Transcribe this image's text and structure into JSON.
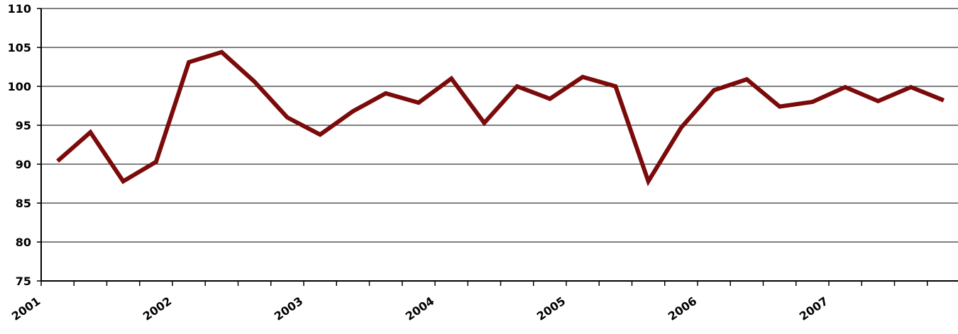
{
  "chart_data": {
    "type": "line",
    "title": "",
    "xlabel": "",
    "ylabel": "",
    "ylim": [
      75,
      110
    ],
    "y_ticks": [
      75,
      80,
      85,
      90,
      95,
      100,
      105,
      110
    ],
    "x_tick_labels": [
      "2001",
      "2002",
      "2003",
      "2004",
      "2005",
      "2006",
      "2007"
    ],
    "grid": "horizontal",
    "legend": "none",
    "series": [
      {
        "color": "#7b0a0a",
        "x": [
          "2001-Q1",
          "2001-Q2",
          "2001-Q3",
          "2001-Q4",
          "2002-Q1",
          "2002-Q2",
          "2002-Q3",
          "2002-Q4",
          "2003-Q1",
          "2003-Q2",
          "2003-Q3",
          "2003-Q4",
          "2004-Q1",
          "2004-Q2",
          "2004-Q3",
          "2004-Q4",
          "2005-Q1",
          "2005-Q2",
          "2005-Q3",
          "2005-Q4",
          "2006-Q1",
          "2006-Q2",
          "2006-Q3",
          "2006-Q4",
          "2007-Q1",
          "2007-Q2",
          "2007-Q3",
          "2007-Q4"
        ],
        "values": [
          90.4,
          94.1,
          87.8,
          90.3,
          103.1,
          104.4,
          100.6,
          96.0,
          93.8,
          96.8,
          99.1,
          97.9,
          101.0,
          95.3,
          100.0,
          98.4,
          101.2,
          100.0,
          87.8,
          94.7,
          99.5,
          100.9,
          97.4,
          98.0,
          99.9,
          98.1,
          99.9,
          98.2
        ]
      }
    ]
  }
}
